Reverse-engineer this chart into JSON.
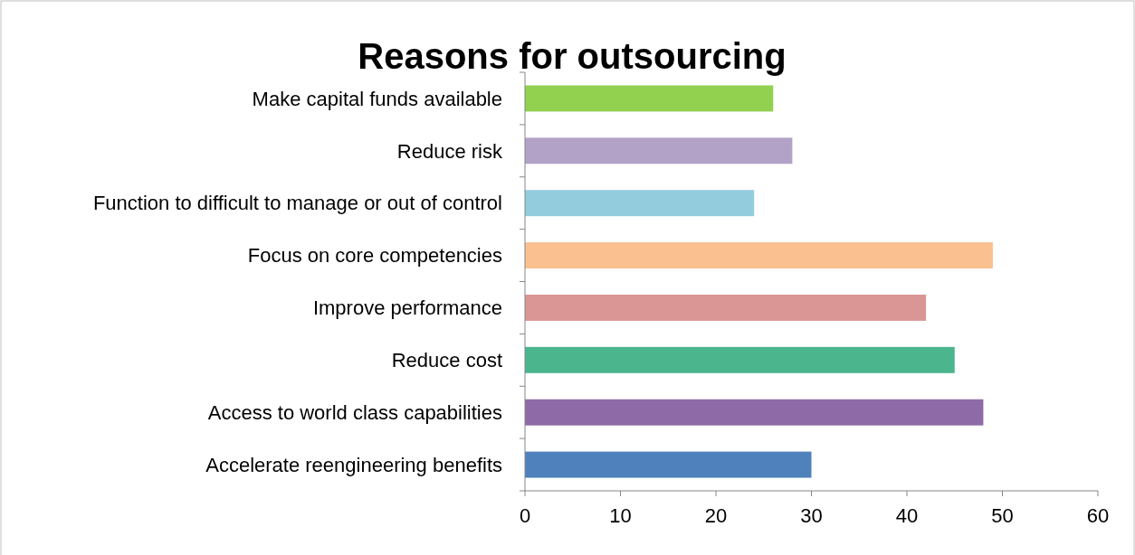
{
  "chart_data": {
    "type": "bar",
    "orientation": "horizontal",
    "title": "Reasons for outsourcing",
    "categories": [
      "Make capital funds available",
      "Reduce risk",
      "Function to difficult to manage or out of control",
      "Focus on core competencies",
      "Improve performance",
      "Reduce cost",
      "Access to world class capabilities",
      "Accelerate reengineering benefits"
    ],
    "values": [
      26,
      28,
      24,
      49,
      42,
      45,
      48,
      30
    ],
    "colors": [
      "#92d050",
      "#b3a2c7",
      "#93cddd",
      "#fac090",
      "#d99694",
      "#4bb58e",
      "#8e6aa6",
      "#4f81bd"
    ],
    "xlim": [
      0,
      60
    ],
    "xticks": [
      0,
      10,
      20,
      30,
      40,
      50,
      60
    ],
    "grid": false
  }
}
